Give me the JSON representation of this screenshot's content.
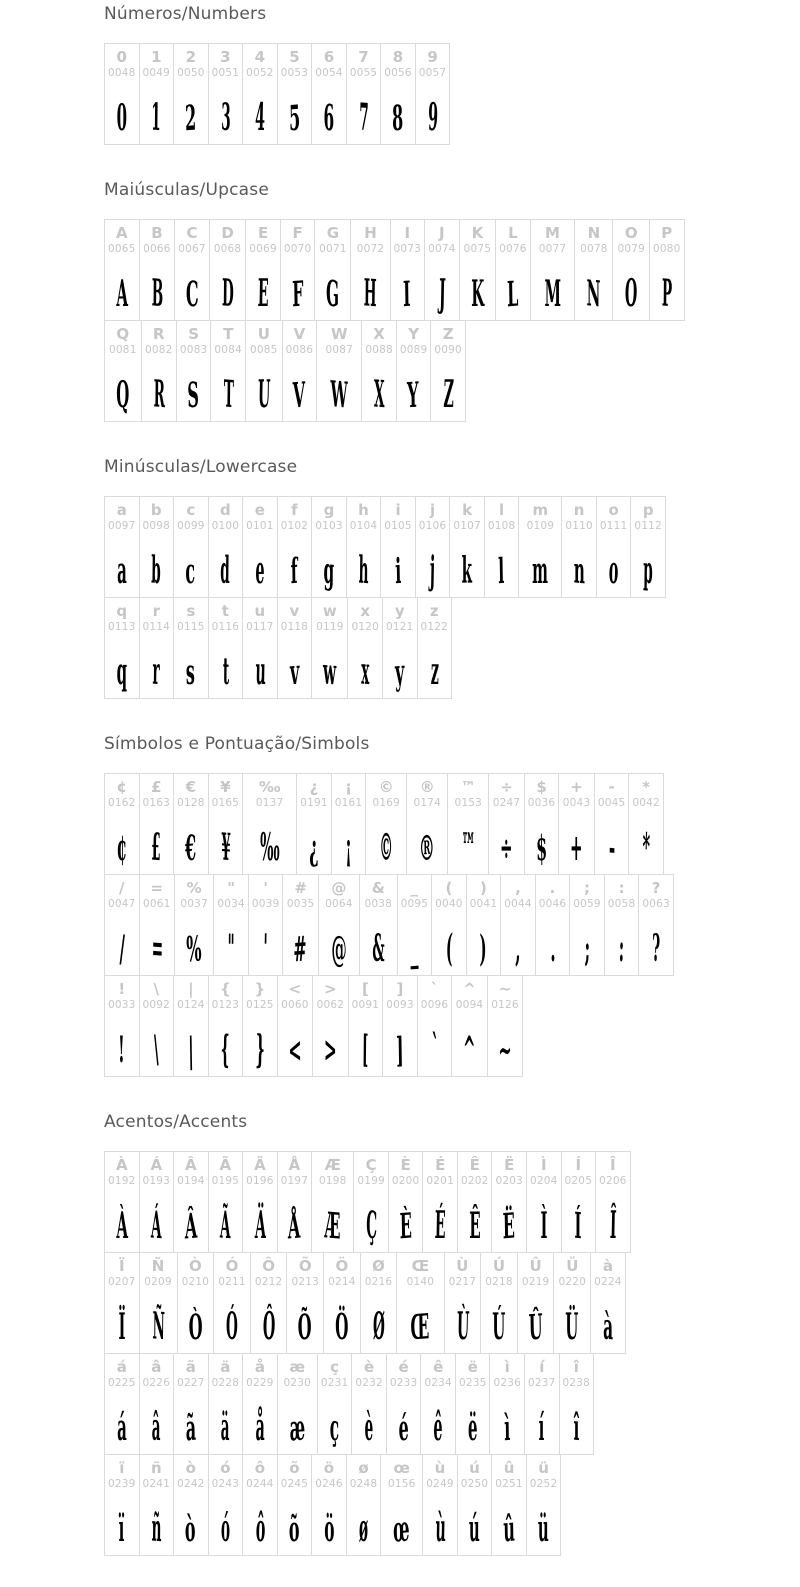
{
  "colors": {
    "header_text": "#59595b",
    "reference_char": "#c6c6c6",
    "code_text": "#c6c6c6",
    "cell_border": "#dadada",
    "glyph_color": "#000000",
    "background": "#ffffff"
  },
  "sections": [
    {
      "title": "Números/Numbers",
      "rows": [
        [
          {
            "ch": "0",
            "code": "0048"
          },
          {
            "ch": "1",
            "code": "0049"
          },
          {
            "ch": "2",
            "code": "0050"
          },
          {
            "ch": "3",
            "code": "0051"
          },
          {
            "ch": "4",
            "code": "0052"
          },
          {
            "ch": "5",
            "code": "0053"
          },
          {
            "ch": "6",
            "code": "0054"
          },
          {
            "ch": "7",
            "code": "0055"
          },
          {
            "ch": "8",
            "code": "0056"
          },
          {
            "ch": "9",
            "code": "0057"
          }
        ]
      ]
    },
    {
      "title": "Maiúsculas/Upcase",
      "rows": [
        [
          {
            "ch": "A",
            "code": "0065"
          },
          {
            "ch": "B",
            "code": "0066"
          },
          {
            "ch": "C",
            "code": "0067"
          },
          {
            "ch": "D",
            "code": "0068"
          },
          {
            "ch": "E",
            "code": "0069"
          },
          {
            "ch": "F",
            "code": "0070"
          },
          {
            "ch": "G",
            "code": "0071"
          },
          {
            "ch": "H",
            "code": "0072"
          },
          {
            "ch": "I",
            "code": "0073"
          },
          {
            "ch": "J",
            "code": "0074"
          },
          {
            "ch": "K",
            "code": "0075"
          },
          {
            "ch": "L",
            "code": "0076"
          },
          {
            "ch": "M",
            "code": "0077"
          },
          {
            "ch": "N",
            "code": "0078"
          },
          {
            "ch": "O",
            "code": "0079"
          },
          {
            "ch": "P",
            "code": "0080"
          }
        ],
        [
          {
            "ch": "Q",
            "code": "0081"
          },
          {
            "ch": "R",
            "code": "0082"
          },
          {
            "ch": "S",
            "code": "0083"
          },
          {
            "ch": "T",
            "code": "0084"
          },
          {
            "ch": "U",
            "code": "0085"
          },
          {
            "ch": "V",
            "code": "0086"
          },
          {
            "ch": "W",
            "code": "0087"
          },
          {
            "ch": "X",
            "code": "0088"
          },
          {
            "ch": "Y",
            "code": "0089"
          },
          {
            "ch": "Z",
            "code": "0090"
          }
        ]
      ]
    },
    {
      "title": "Minúsculas/Lowercase",
      "rows": [
        [
          {
            "ch": "a",
            "code": "0097"
          },
          {
            "ch": "b",
            "code": "0098"
          },
          {
            "ch": "c",
            "code": "0099"
          },
          {
            "ch": "d",
            "code": "0100"
          },
          {
            "ch": "e",
            "code": "0101"
          },
          {
            "ch": "f",
            "code": "0102"
          },
          {
            "ch": "g",
            "code": "0103"
          },
          {
            "ch": "h",
            "code": "0104"
          },
          {
            "ch": "i",
            "code": "0105"
          },
          {
            "ch": "j",
            "code": "0106"
          },
          {
            "ch": "k",
            "code": "0107"
          },
          {
            "ch": "l",
            "code": "0108"
          },
          {
            "ch": "m",
            "code": "0109"
          },
          {
            "ch": "n",
            "code": "0110"
          },
          {
            "ch": "o",
            "code": "0111"
          },
          {
            "ch": "p",
            "code": "0112"
          }
        ],
        [
          {
            "ch": "q",
            "code": "0113"
          },
          {
            "ch": "r",
            "code": "0114"
          },
          {
            "ch": "s",
            "code": "0115"
          },
          {
            "ch": "t",
            "code": "0116"
          },
          {
            "ch": "u",
            "code": "0117"
          },
          {
            "ch": "v",
            "code": "0118"
          },
          {
            "ch": "w",
            "code": "0119"
          },
          {
            "ch": "x",
            "code": "0120"
          },
          {
            "ch": "y",
            "code": "0121"
          },
          {
            "ch": "z",
            "code": "0122"
          }
        ]
      ]
    },
    {
      "title": "Símbolos e Pontuação/Simbols",
      "rows": [
        [
          {
            "ch": "¢",
            "code": "0162"
          },
          {
            "ch": "£",
            "code": "0163"
          },
          {
            "ch": "€",
            "code": "0128"
          },
          {
            "ch": "¥",
            "code": "0165"
          },
          {
            "ch": "‰",
            "code": "0137"
          },
          {
            "ch": "¿",
            "code": "0191"
          },
          {
            "ch": "¡",
            "code": "0161"
          },
          {
            "ch": "©",
            "code": "0169"
          },
          {
            "ch": "®",
            "code": "0174"
          },
          {
            "ch": "™",
            "code": "0153"
          },
          {
            "ch": "÷",
            "code": "0247"
          },
          {
            "ch": "$",
            "code": "0036"
          },
          {
            "ch": "+",
            "code": "0043"
          },
          {
            "ch": "-",
            "code": "0045"
          },
          {
            "ch": "*",
            "code": "0042"
          }
        ],
        [
          {
            "ch": "/",
            "code": "0047"
          },
          {
            "ch": "=",
            "code": "0061"
          },
          {
            "ch": "%",
            "code": "0037"
          },
          {
            "ch": "\"",
            "code": "0034"
          },
          {
            "ch": "'",
            "code": "0039"
          },
          {
            "ch": "#",
            "code": "0035"
          },
          {
            "ch": "@",
            "code": "0064"
          },
          {
            "ch": "&",
            "code": "0038"
          },
          {
            "ch": "_",
            "code": "0095"
          },
          {
            "ch": "(",
            "code": "0040"
          },
          {
            "ch": ")",
            "code": "0041"
          },
          {
            "ch": ",",
            "code": "0044"
          },
          {
            "ch": ".",
            "code": "0046"
          },
          {
            "ch": ";",
            "code": "0059"
          },
          {
            "ch": ":",
            "code": "0058"
          },
          {
            "ch": "?",
            "code": "0063"
          }
        ],
        [
          {
            "ch": "!",
            "code": "0033"
          },
          {
            "ch": "\\",
            "code": "0092"
          },
          {
            "ch": "|",
            "code": "0124"
          },
          {
            "ch": "{",
            "code": "0123"
          },
          {
            "ch": "}",
            "code": "0125"
          },
          {
            "ch": "<",
            "code": "0060"
          },
          {
            "ch": ">",
            "code": "0062"
          },
          {
            "ch": "[",
            "code": "0091"
          },
          {
            "ch": "]",
            "code": "0093"
          },
          {
            "ch": "`",
            "code": "0096"
          },
          {
            "ch": "^",
            "code": "0094"
          },
          {
            "ch": "~",
            "code": "0126"
          }
        ]
      ]
    },
    {
      "title": "Acentos/Accents",
      "rows": [
        [
          {
            "ch": "À",
            "code": "0192"
          },
          {
            "ch": "Á",
            "code": "0193"
          },
          {
            "ch": "Â",
            "code": "0194"
          },
          {
            "ch": "Ã",
            "code": "0195"
          },
          {
            "ch": "Ä",
            "code": "0196"
          },
          {
            "ch": "Å",
            "code": "0197"
          },
          {
            "ch": "Æ",
            "code": "0198"
          },
          {
            "ch": "Ç",
            "code": "0199"
          },
          {
            "ch": "È",
            "code": "0200"
          },
          {
            "ch": "É",
            "code": "0201"
          },
          {
            "ch": "Ê",
            "code": "0202"
          },
          {
            "ch": "Ë",
            "code": "0203"
          },
          {
            "ch": "Ì",
            "code": "0204"
          },
          {
            "ch": "Í",
            "code": "0205"
          },
          {
            "ch": "Î",
            "code": "0206"
          }
        ],
        [
          {
            "ch": "Ï",
            "code": "0207"
          },
          {
            "ch": "Ñ",
            "code": "0209"
          },
          {
            "ch": "Ò",
            "code": "0210"
          },
          {
            "ch": "Ó",
            "code": "0211"
          },
          {
            "ch": "Ô",
            "code": "0212"
          },
          {
            "ch": "Õ",
            "code": "0213"
          },
          {
            "ch": "Ö",
            "code": "0214"
          },
          {
            "ch": "Ø",
            "code": "0216"
          },
          {
            "ch": "Œ",
            "code": "0140"
          },
          {
            "ch": "Ù",
            "code": "0217"
          },
          {
            "ch": "Ú",
            "code": "0218"
          },
          {
            "ch": "Û",
            "code": "0219"
          },
          {
            "ch": "Ü",
            "code": "0220"
          },
          {
            "ch": "à",
            "code": "0224"
          }
        ],
        [
          {
            "ch": "á",
            "code": "0225"
          },
          {
            "ch": "â",
            "code": "0226"
          },
          {
            "ch": "ã",
            "code": "0227"
          },
          {
            "ch": "ä",
            "code": "0228"
          },
          {
            "ch": "å",
            "code": "0229"
          },
          {
            "ch": "æ",
            "code": "0230"
          },
          {
            "ch": "ç",
            "code": "0231"
          },
          {
            "ch": "è",
            "code": "0232"
          },
          {
            "ch": "é",
            "code": "0233"
          },
          {
            "ch": "ê",
            "code": "0234"
          },
          {
            "ch": "ë",
            "code": "0235"
          },
          {
            "ch": "ì",
            "code": "0236"
          },
          {
            "ch": "í",
            "code": "0237"
          },
          {
            "ch": "î",
            "code": "0238"
          }
        ],
        [
          {
            "ch": "ï",
            "code": "0239"
          },
          {
            "ch": "ñ",
            "code": "0241"
          },
          {
            "ch": "ò",
            "code": "0242"
          },
          {
            "ch": "ó",
            "code": "0243"
          },
          {
            "ch": "ô",
            "code": "0244"
          },
          {
            "ch": "õ",
            "code": "0245"
          },
          {
            "ch": "ö",
            "code": "0246"
          },
          {
            "ch": "ø",
            "code": "0248"
          },
          {
            "ch": "œ",
            "code": "0156"
          },
          {
            "ch": "ù",
            "code": "0249"
          },
          {
            "ch": "ú",
            "code": "0250"
          },
          {
            "ch": "û",
            "code": "0251"
          },
          {
            "ch": "ü",
            "code": "0252"
          }
        ]
      ]
    }
  ]
}
